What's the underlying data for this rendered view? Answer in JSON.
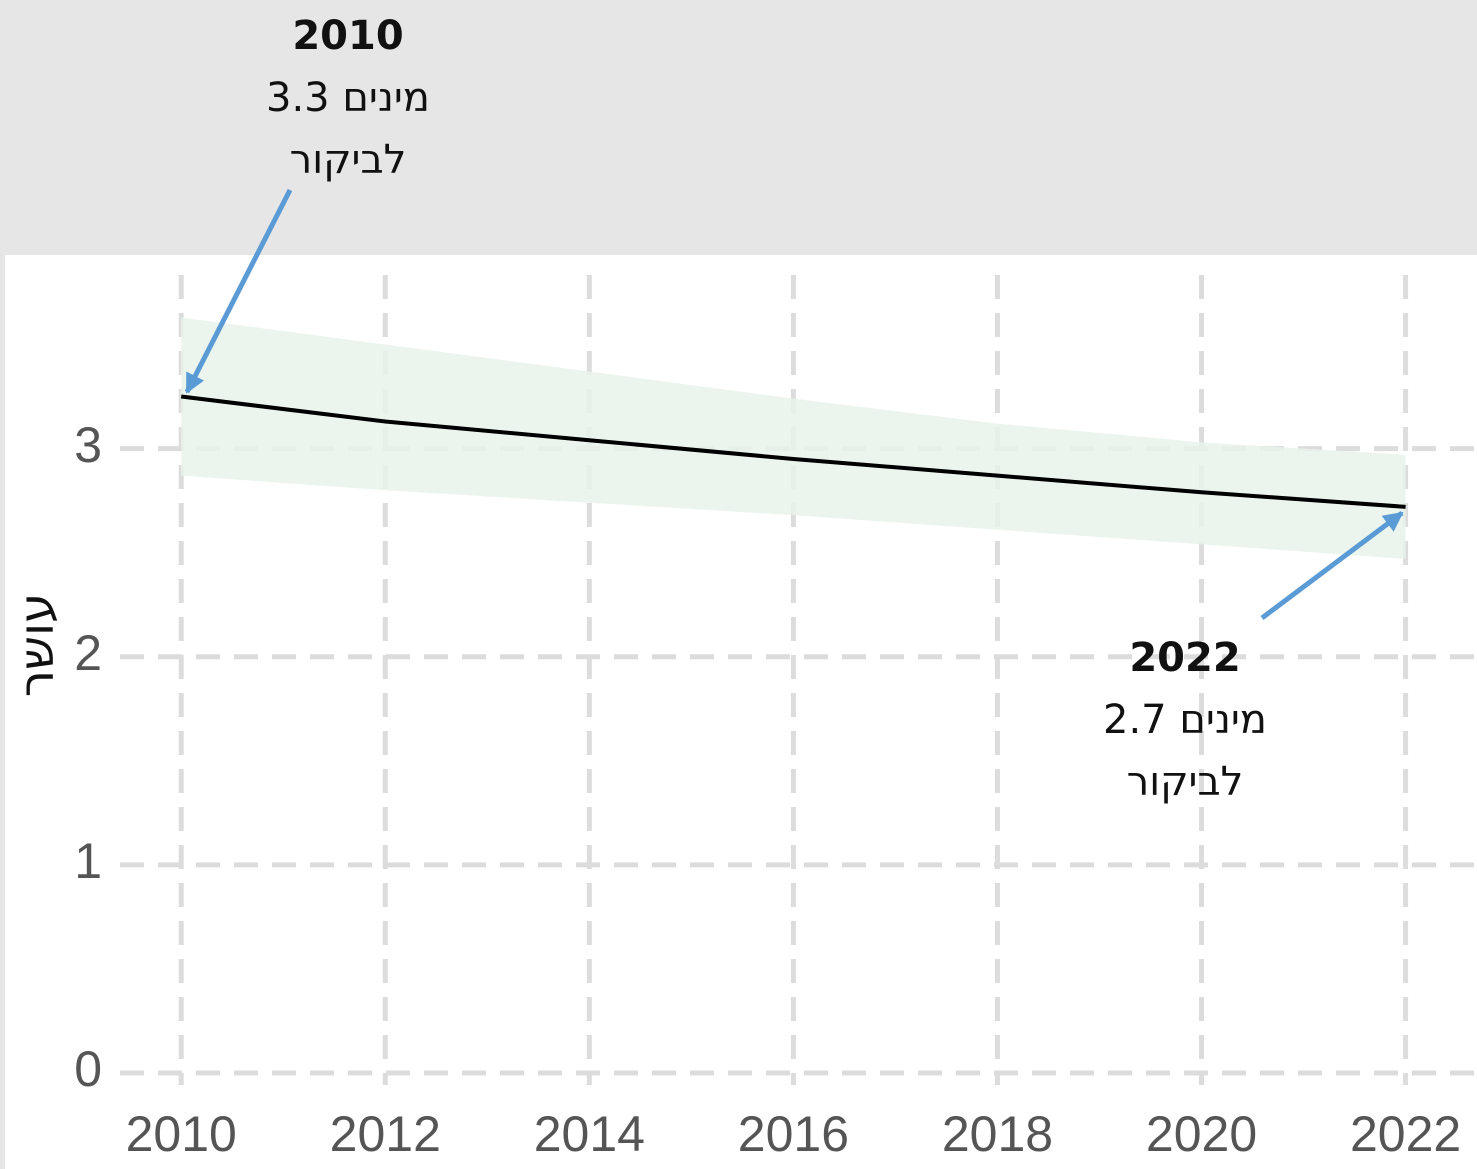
{
  "chart_data": {
    "type": "line",
    "x": [
      2010,
      2012,
      2014,
      2016,
      2018,
      2020,
      2022
    ],
    "values": [
      3.25,
      3.13,
      3.04,
      2.95,
      2.87,
      2.79,
      2.72
    ],
    "color": "#000000",
    "band": {
      "upper": [
        3.63,
        3.5,
        3.37,
        3.24,
        3.12,
        3.03,
        2.97
      ],
      "lower": [
        2.87,
        2.8,
        2.74,
        2.68,
        2.61,
        2.54,
        2.47
      ],
      "color": "#e8f3ea"
    },
    "ylabel": "עושר",
    "xlim": [
      2009.4,
      2022.7
    ],
    "ylim": [
      0,
      3.93
    ],
    "xticks": [
      2010,
      2012,
      2014,
      2016,
      2018,
      2020,
      2022
    ],
    "yticks": [
      0,
      1,
      2,
      3
    ],
    "grid": true,
    "annotations": [
      {
        "title": "2010",
        "lines": [
          "3.3 מינים",
          "לביקור"
        ]
      },
      {
        "title": "2022",
        "lines": [
          "2.7 מינים",
          "לביקור"
        ]
      }
    ]
  }
}
